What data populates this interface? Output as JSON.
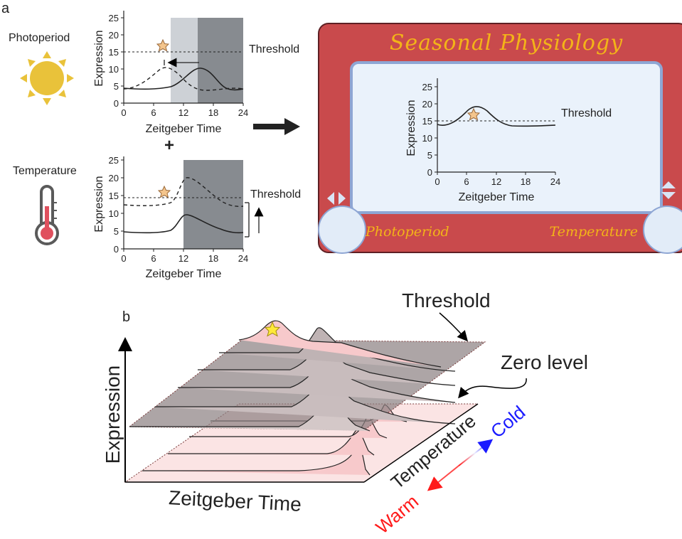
{
  "panel_a": {
    "label": "a",
    "photoperiod_label": "Photoperiod",
    "temperature_label": "Temperature",
    "plus": "+",
    "plots": {
      "y_label": "Expression",
      "x_label": "Zeitgeber Time",
      "y_ticks": [
        "0",
        "5",
        "10",
        "15",
        "20",
        "25"
      ],
      "x_ticks": [
        "0",
        "6",
        "12",
        "18",
        "24"
      ],
      "threshold_label": "Threshold"
    },
    "etch_a_sketch": {
      "title": "Seasonal Physiology",
      "left_knob_label": "Photoperiod",
      "right_knob_label": "Temperature"
    }
  },
  "panel_b": {
    "label": "b",
    "threshold_label": "Threshold",
    "zero_level_label": "Zero level",
    "y_axis_label": "Expression",
    "x_axis_label": "Zeitgeber Time",
    "depth_axis_label": "Temperature",
    "cold_label": "Cold",
    "warm_label": "Warm"
  },
  "colors": {
    "frame_red": "#c94a4c",
    "title_gold": "#f3b418",
    "screen_bg": "#eaf2fb",
    "screen_border": "#8ea6d4",
    "sun": "#e9c23a",
    "thermometer_red": "#e0505e",
    "night_dark": "#878b90",
    "night_light": "#cdd1d6",
    "pink_fill": "#f7c9cb",
    "pink_light": "#fbe4e4",
    "gray_plane": "#8a7f80",
    "cold_blue": "#1a1aff",
    "warm_red": "#ff1a1a"
  },
  "icons": [
    "sun-icon",
    "thermometer-icon",
    "star-icon",
    "arrow-right-icon",
    "left-right-arrows-icon",
    "up-down-arrows-icon"
  ]
}
